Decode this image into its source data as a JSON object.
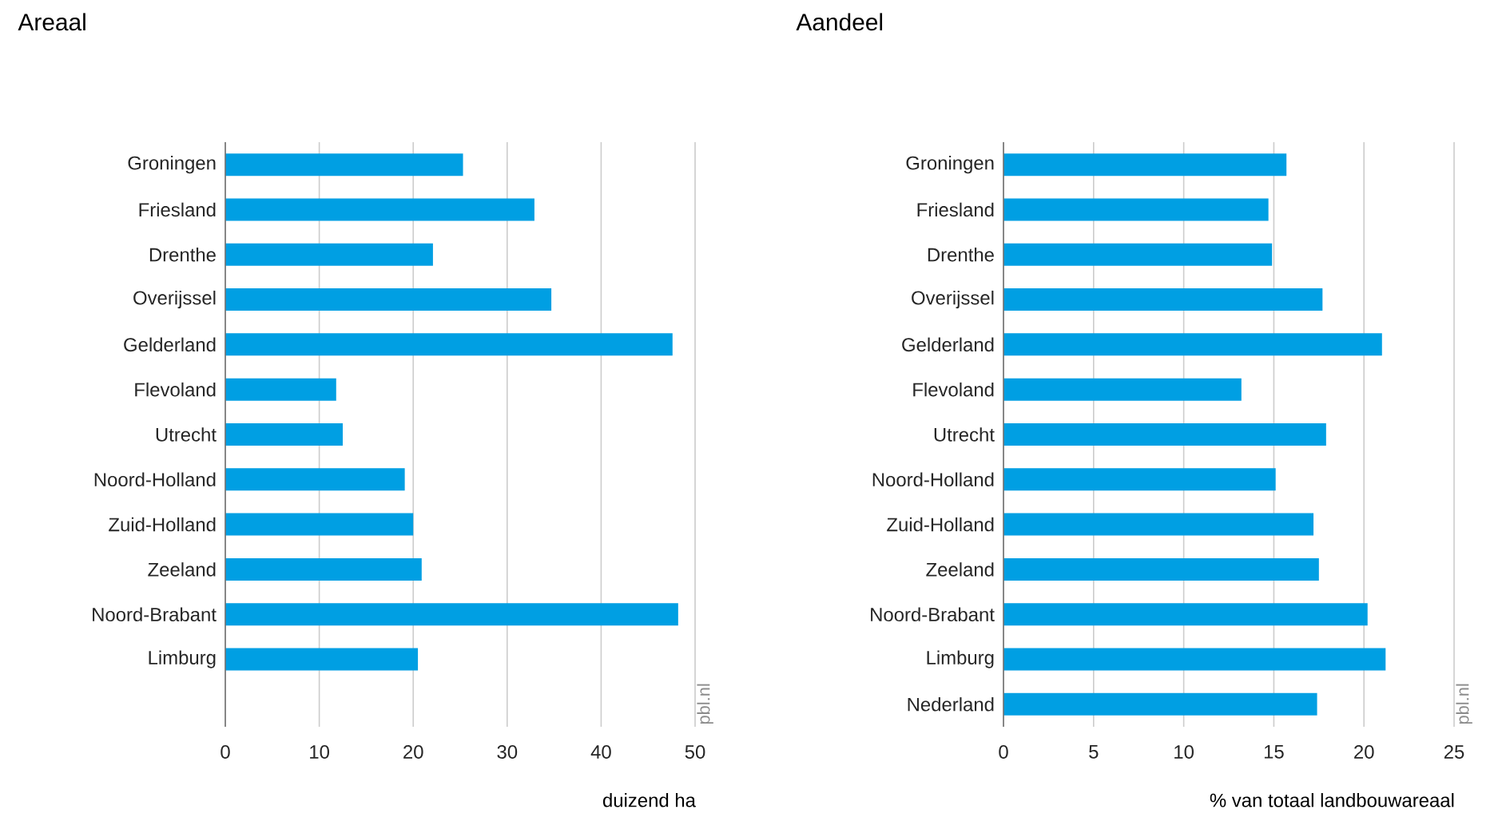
{
  "chart_data": [
    {
      "type": "bar",
      "orientation": "horizontal",
      "title": "Areaal",
      "xlabel": "duizend ha",
      "categories": [
        "Groningen",
        "Friesland",
        "Drenthe",
        "Overijssel",
        "Gelderland",
        "Flevoland",
        "Utrecht",
        "Noord-Holland",
        "Zuid-Holland",
        "Zeeland",
        "Noord-Brabant",
        "Limburg"
      ],
      "values": [
        25.3,
        32.9,
        22.1,
        34.7,
        47.6,
        11.8,
        12.5,
        19.1,
        20.0,
        20.9,
        48.2,
        20.5
      ],
      "color": "#009fe3",
      "xlim": [
        0,
        50
      ],
      "xticks": [
        0,
        10,
        20,
        30,
        40,
        50
      ],
      "grid": "x",
      "annotations": [
        "pbl.nl"
      ]
    },
    {
      "type": "bar",
      "orientation": "horizontal",
      "title": "Aandeel",
      "xlabel": "% van totaal landbouwareaal",
      "categories": [
        "Groningen",
        "Friesland",
        "Drenthe",
        "Overijssel",
        "Gelderland",
        "Flevoland",
        "Utrecht",
        "Noord-Holland",
        "Zuid-Holland",
        "Zeeland",
        "Noord-Brabant",
        "Limburg",
        "Nederland"
      ],
      "values": [
        15.7,
        14.7,
        14.9,
        17.7,
        21.0,
        13.2,
        17.9,
        15.1,
        17.2,
        17.5,
        20.2,
        21.2,
        17.4
      ],
      "color": "#009fe3",
      "xlim": [
        0,
        25
      ],
      "xticks": [
        0,
        5,
        10,
        15,
        20,
        25
      ],
      "grid": "x",
      "annotations": [
        "pbl.nl"
      ]
    }
  ]
}
